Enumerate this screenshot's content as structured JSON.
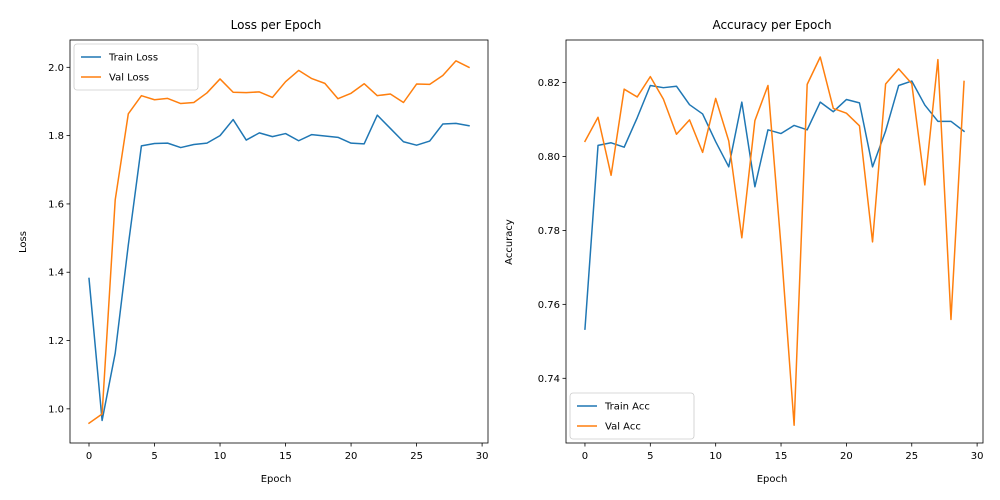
{
  "chart_data": [
    {
      "type": "line",
      "title": "Loss per Epoch",
      "xlabel": "Epoch",
      "ylabel": "Loss",
      "xlim": [
        -1.45,
        30.45
      ],
      "ylim": [
        0.9,
        2.08
      ],
      "xticks": [
        0,
        5,
        10,
        15,
        20,
        25,
        30
      ],
      "xtick_labels": [
        "0",
        "5",
        "10",
        "15",
        "20",
        "25",
        "30"
      ],
      "yticks": [
        1.0,
        1.2,
        1.4,
        1.6,
        1.8,
        2.0
      ],
      "ytick_labels": [
        "1.0",
        "1.2",
        "1.4",
        "1.6",
        "1.8",
        "2.0"
      ],
      "grid": false,
      "legend_position": "top-left",
      "x": [
        0,
        1,
        2,
        3,
        4,
        5,
        6,
        7,
        8,
        9,
        10,
        11,
        12,
        13,
        14,
        15,
        16,
        17,
        18,
        19,
        20,
        21,
        22,
        23,
        24,
        25,
        26,
        27,
        28,
        29
      ],
      "series": [
        {
          "name": "Train Loss",
          "color": "#1f77b4",
          "values": [
            1.382,
            0.966,
            1.163,
            1.48,
            1.77,
            1.777,
            1.778,
            1.765,
            1.774,
            1.778,
            1.8,
            1.847,
            1.787,
            1.808,
            1.797,
            1.806,
            1.785,
            1.803,
            1.799,
            1.795,
            1.778,
            1.776,
            1.86,
            1.821,
            1.782,
            1.772,
            1.784,
            1.834,
            1.836,
            1.829
          ]
        },
        {
          "name": "Val Loss",
          "color": "#ff7f0e",
          "values": [
            0.958,
            0.985,
            1.612,
            1.864,
            1.917,
            1.905,
            1.909,
            1.894,
            1.897,
            1.925,
            1.966,
            1.927,
            1.926,
            1.928,
            1.912,
            1.958,
            1.991,
            1.967,
            1.953,
            1.908,
            1.924,
            1.952,
            1.917,
            1.922,
            1.897,
            1.951,
            1.95,
            1.976,
            2.019,
            2.0
          ]
        }
      ]
    },
    {
      "type": "line",
      "title": "Accuracy per Epoch",
      "xlabel": "Epoch",
      "ylabel": "Accuracy",
      "xlim": [
        -1.45,
        30.45
      ],
      "ylim": [
        0.7225,
        0.8315
      ],
      "xticks": [
        0,
        5,
        10,
        15,
        20,
        25,
        30
      ],
      "xtick_labels": [
        "0",
        "5",
        "10",
        "15",
        "20",
        "25",
        "30"
      ],
      "yticks": [
        0.74,
        0.76,
        0.78,
        0.8,
        0.82
      ],
      "ytick_labels": [
        "0.74",
        "0.76",
        "0.78",
        "0.80",
        "0.82"
      ],
      "grid": false,
      "legend_position": "bottom-left",
      "x": [
        0,
        1,
        2,
        3,
        4,
        5,
        6,
        7,
        8,
        9,
        10,
        11,
        12,
        13,
        14,
        15,
        16,
        17,
        18,
        19,
        20,
        21,
        22,
        23,
        24,
        25,
        26,
        27,
        28,
        29
      ],
      "series": [
        {
          "name": "Train Acc",
          "color": "#1f77b4",
          "values": [
            0.7533,
            0.803,
            0.8037,
            0.8025,
            0.8105,
            0.8192,
            0.8186,
            0.819,
            0.814,
            0.8115,
            0.804,
            0.7972,
            0.8147,
            0.7918,
            0.8072,
            0.8062,
            0.8084,
            0.8072,
            0.8147,
            0.8121,
            0.8154,
            0.8145,
            0.7972,
            0.8069,
            0.8192,
            0.8204,
            0.8139,
            0.8095,
            0.8095,
            0.8068
          ]
        },
        {
          "name": "Val Acc",
          "color": "#ff7f0e",
          "values": [
            0.8041,
            0.8106,
            0.7949,
            0.8182,
            0.8161,
            0.8216,
            0.8155,
            0.806,
            0.8099,
            0.8011,
            0.8157,
            0.8042,
            0.778,
            0.8097,
            0.8192,
            0.7756,
            0.7273,
            0.8195,
            0.8269,
            0.813,
            0.8117,
            0.8083,
            0.7769,
            0.8196,
            0.8237,
            0.8197,
            0.7923,
            0.8262,
            0.7559,
            0.8203
          ]
        }
      ]
    }
  ]
}
